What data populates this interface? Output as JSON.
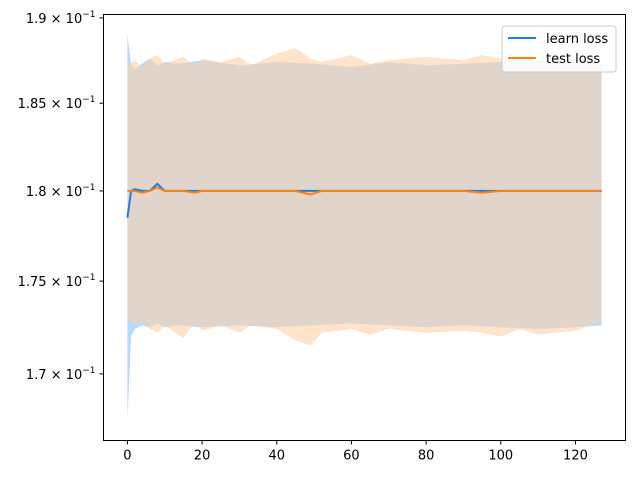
{
  "chart_data": {
    "type": "line",
    "title": "",
    "xlabel": "",
    "ylabel": "",
    "yscale": "log",
    "xlim": [
      -6.4,
      133.4
    ],
    "ylim": [
      0.1665,
      0.1902
    ],
    "xticks": [
      0,
      20,
      40,
      60,
      80,
      100,
      120
    ],
    "xtick_labels": [
      "0",
      "20",
      "40",
      "60",
      "80",
      "100",
      "120"
    ],
    "yticks": [
      0.17,
      0.175,
      0.18,
      0.185,
      0.19
    ],
    "ytick_labels": [
      {
        "mant": "1.7",
        "exp": "−1"
      },
      {
        "mant": "1.75",
        "exp": "−1"
      },
      {
        "mant": "1.8",
        "exp": "−1"
      },
      {
        "mant": "1.85",
        "exp": "−1"
      },
      {
        "mant": "1.9",
        "exp": "−1"
      }
    ],
    "legend": {
      "position": "top-right"
    },
    "series": [
      {
        "name": "learn loss",
        "color": "#1f77b4",
        "line_color": "#1a7fe0",
        "band_color": "#a6d3ff",
        "x": [
          0,
          1,
          2,
          4,
          6,
          8,
          10,
          14,
          20,
          30,
          40,
          50,
          60,
          70,
          80,
          90,
          100,
          110,
          120,
          127
        ],
        "values": [
          0.1785,
          0.18,
          0.1801,
          0.18,
          0.18,
          0.1804,
          0.18,
          0.18,
          0.18,
          0.18,
          0.18,
          0.18,
          0.18,
          0.18,
          0.18,
          0.18,
          0.18,
          0.18,
          0.18,
          0.18
        ],
        "upper": [
          0.189,
          0.1872,
          0.187,
          0.1873,
          0.1876,
          0.1872,
          0.1874,
          0.1873,
          0.1875,
          0.1872,
          0.1874,
          0.1873,
          0.1871,
          0.1874,
          0.1872,
          0.1873,
          0.1874,
          0.1875,
          0.1874,
          0.1873
        ],
        "lower": [
          0.1676,
          0.172,
          0.1724,
          0.1726,
          0.1725,
          0.1727,
          0.1725,
          0.1726,
          0.1725,
          0.1726,
          0.1725,
          0.1726,
          0.1727,
          0.1726,
          0.1725,
          0.1726,
          0.1725,
          0.1724,
          0.1725,
          0.1726
        ]
      },
      {
        "name": "test loss",
        "color": "#ff7f0e",
        "line_color": "#ff7f0e",
        "band_color": "#ffd0a6",
        "x": [
          0,
          2,
          4,
          6,
          8,
          10,
          15,
          18,
          20,
          25,
          30,
          33,
          40,
          45,
          49,
          52,
          60,
          65,
          70,
          80,
          90,
          95,
          100,
          105,
          110,
          120,
          127
        ],
        "values": [
          0.18,
          0.18,
          0.1799,
          0.18,
          0.1802,
          0.18,
          0.18,
          0.1799,
          0.18,
          0.18,
          0.18,
          0.18,
          0.18,
          0.18,
          0.1798,
          0.18,
          0.18,
          0.18,
          0.18,
          0.18,
          0.18,
          0.1799,
          0.18,
          0.18,
          0.18,
          0.18,
          0.18
        ],
        "upper": [
          0.1872,
          0.1875,
          0.1871,
          0.1876,
          0.1878,
          0.1873,
          0.1877,
          0.1872,
          0.1876,
          0.1874,
          0.1877,
          0.1872,
          0.1879,
          0.1882,
          0.1876,
          0.1874,
          0.1878,
          0.1873,
          0.1875,
          0.1877,
          0.1875,
          0.1878,
          0.1876,
          0.1874,
          0.1875,
          0.1876,
          0.1874
        ],
        "lower": [
          0.173,
          0.1726,
          0.1728,
          0.1724,
          0.1722,
          0.1726,
          0.1719,
          0.1727,
          0.1723,
          0.1726,
          0.1722,
          0.1726,
          0.1724,
          0.1718,
          0.1715,
          0.1722,
          0.1724,
          0.1721,
          0.1724,
          0.1722,
          0.1723,
          0.1722,
          0.172,
          0.1724,
          0.1721,
          0.1723,
          0.1728
        ]
      }
    ]
  }
}
